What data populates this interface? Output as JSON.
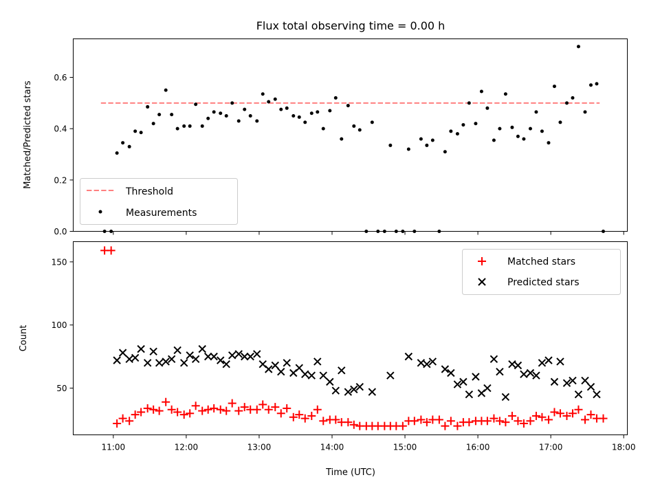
{
  "title": "Flux total observing time = 0.00 h",
  "chart_data": [
    {
      "type": "scatter",
      "title": "Flux total observing time = 0.00 h",
      "xlabel": "",
      "ylabel": "Matched/Predicted stars",
      "xlim": [
        10.45,
        18.05
      ],
      "ylim": [
        0.0,
        0.75
      ],
      "yticks": [
        0.0,
        0.2,
        0.4,
        0.6
      ],
      "ytick_labels": [
        "0.0",
        "0.2",
        "0.4",
        "0.6"
      ],
      "grid": false,
      "legend_position": "lower-left",
      "threshold": {
        "name": "Threshold",
        "value": 0.5,
        "x_range": [
          10.83,
          17.67
        ],
        "color": "#ff7f7f"
      },
      "series": [
        {
          "name": "Measurements",
          "color": "#000000",
          "points": [
            [
              10.88,
              0.0
            ],
            [
              10.97,
              0.0
            ],
            [
              11.05,
              0.305
            ],
            [
              11.13,
              0.345
            ],
            [
              11.22,
              0.33
            ],
            [
              11.3,
              0.39
            ],
            [
              11.38,
              0.385
            ],
            [
              11.47,
              0.485
            ],
            [
              11.55,
              0.42
            ],
            [
              11.63,
              0.455
            ],
            [
              11.72,
              0.55
            ],
            [
              11.8,
              0.455
            ],
            [
              11.88,
              0.4
            ],
            [
              11.97,
              0.41
            ],
            [
              12.05,
              0.41
            ],
            [
              12.13,
              0.495
            ],
            [
              12.22,
              0.41
            ],
            [
              12.3,
              0.44
            ],
            [
              12.38,
              0.465
            ],
            [
              12.47,
              0.46
            ],
            [
              12.55,
              0.45
            ],
            [
              12.63,
              0.5
            ],
            [
              12.72,
              0.43
            ],
            [
              12.8,
              0.475
            ],
            [
              12.88,
              0.45
            ],
            [
              12.97,
              0.43
            ],
            [
              13.05,
              0.535
            ],
            [
              13.13,
              0.505
            ],
            [
              13.22,
              0.515
            ],
            [
              13.3,
              0.475
            ],
            [
              13.38,
              0.48
            ],
            [
              13.47,
              0.45
            ],
            [
              13.55,
              0.445
            ],
            [
              13.63,
              0.425
            ],
            [
              13.72,
              0.46
            ],
            [
              13.8,
              0.465
            ],
            [
              13.88,
              0.4
            ],
            [
              13.97,
              0.47
            ],
            [
              14.05,
              0.52
            ],
            [
              14.13,
              0.36
            ],
            [
              14.22,
              0.49
            ],
            [
              14.3,
              0.41
            ],
            [
              14.38,
              0.395
            ],
            [
              14.47,
              0.0
            ],
            [
              14.55,
              0.425
            ],
            [
              14.63,
              0.0
            ],
            [
              14.72,
              0.0
            ],
            [
              14.8,
              0.335
            ],
            [
              14.88,
              0.0
            ],
            [
              14.97,
              0.0
            ],
            [
              15.05,
              0.32
            ],
            [
              15.13,
              0.0
            ],
            [
              15.22,
              0.36
            ],
            [
              15.3,
              0.335
            ],
            [
              15.38,
              0.355
            ],
            [
              15.47,
              0.0
            ],
            [
              15.55,
              0.31
            ],
            [
              15.63,
              0.39
            ],
            [
              15.72,
              0.38
            ],
            [
              15.8,
              0.415
            ],
            [
              15.88,
              0.5
            ],
            [
              15.97,
              0.42
            ],
            [
              16.05,
              0.545
            ],
            [
              16.13,
              0.48
            ],
            [
              16.22,
              0.355
            ],
            [
              16.3,
              0.4
            ],
            [
              16.38,
              0.535
            ],
            [
              16.47,
              0.405
            ],
            [
              16.55,
              0.37
            ],
            [
              16.63,
              0.36
            ],
            [
              16.72,
              0.4
            ],
            [
              16.8,
              0.465
            ],
            [
              16.88,
              0.39
            ],
            [
              16.97,
              0.345
            ],
            [
              17.05,
              0.565
            ],
            [
              17.13,
              0.425
            ],
            [
              17.22,
              0.5
            ],
            [
              17.3,
              0.52
            ],
            [
              17.38,
              0.72
            ],
            [
              17.47,
              0.465
            ],
            [
              17.55,
              0.57
            ],
            [
              17.63,
              0.575
            ],
            [
              17.72,
              0.0
            ]
          ]
        }
      ]
    },
    {
      "type": "scatter",
      "title": "",
      "xlabel": "Time (UTC)",
      "ylabel": "Count",
      "xlim": [
        10.45,
        18.05
      ],
      "ylim": [
        13,
        166
      ],
      "xticks": [
        11,
        12,
        13,
        14,
        15,
        16,
        17,
        18
      ],
      "xtick_labels": [
        "11:00",
        "12:00",
        "13:00",
        "14:00",
        "15:00",
        "16:00",
        "17:00",
        "18:00"
      ],
      "yticks": [
        50,
        100,
        150
      ],
      "ytick_labels": [
        "50",
        "100",
        "150"
      ],
      "grid": false,
      "legend_position": "top-right",
      "series": [
        {
          "name": "Matched stars",
          "marker": "plus",
          "color": "#ff0000",
          "points": [
            [
              10.88,
              159
            ],
            [
              10.97,
              159
            ],
            [
              11.05,
              22
            ],
            [
              11.13,
              26
            ],
            [
              11.22,
              24
            ],
            [
              11.3,
              29
            ],
            [
              11.38,
              31
            ],
            [
              11.47,
              34
            ],
            [
              11.55,
              33
            ],
            [
              11.63,
              32
            ],
            [
              11.72,
              39
            ],
            [
              11.8,
              33
            ],
            [
              11.88,
              31
            ],
            [
              11.97,
              29
            ],
            [
              12.05,
              30
            ],
            [
              12.13,
              36
            ],
            [
              12.22,
              32
            ],
            [
              12.3,
              33
            ],
            [
              12.38,
              34
            ],
            [
              12.47,
              33
            ],
            [
              12.55,
              32
            ],
            [
              12.63,
              38
            ],
            [
              12.72,
              32
            ],
            [
              12.8,
              35
            ],
            [
              12.88,
              33
            ],
            [
              12.97,
              33
            ],
            [
              13.05,
              37
            ],
            [
              13.13,
              33
            ],
            [
              13.22,
              35
            ],
            [
              13.3,
              30
            ],
            [
              13.38,
              34
            ],
            [
              13.47,
              27
            ],
            [
              13.55,
              29
            ],
            [
              13.63,
              26
            ],
            [
              13.72,
              28
            ],
            [
              13.8,
              33
            ],
            [
              13.88,
              24
            ],
            [
              13.97,
              25
            ],
            [
              14.05,
              25
            ],
            [
              14.13,
              23
            ],
            [
              14.22,
              23
            ],
            [
              14.3,
              21
            ],
            [
              14.38,
              20
            ],
            [
              14.47,
              20
            ],
            [
              14.55,
              20
            ],
            [
              14.63,
              20
            ],
            [
              14.72,
              20
            ],
            [
              14.8,
              20
            ],
            [
              14.88,
              20
            ],
            [
              14.97,
              20
            ],
            [
              15.05,
              24
            ],
            [
              15.13,
              24
            ],
            [
              15.22,
              25
            ],
            [
              15.3,
              23
            ],
            [
              15.38,
              25
            ],
            [
              15.47,
              25
            ],
            [
              15.55,
              20
            ],
            [
              15.63,
              24
            ],
            [
              15.72,
              20
            ],
            [
              15.8,
              23
            ],
            [
              15.88,
              23
            ],
            [
              15.97,
              24
            ],
            [
              16.05,
              24
            ],
            [
              16.13,
              24
            ],
            [
              16.22,
              26
            ],
            [
              16.3,
              24
            ],
            [
              16.38,
              23
            ],
            [
              16.47,
              28
            ],
            [
              16.55,
              24
            ],
            [
              16.63,
              22
            ],
            [
              16.72,
              24
            ],
            [
              16.8,
              28
            ],
            [
              16.88,
              27
            ],
            [
              16.97,
              25
            ],
            [
              17.05,
              31
            ],
            [
              17.13,
              30
            ],
            [
              17.22,
              28
            ],
            [
              17.3,
              30
            ],
            [
              17.38,
              33
            ],
            [
              17.47,
              25
            ],
            [
              17.55,
              29
            ],
            [
              17.63,
              26
            ],
            [
              17.72,
              26
            ]
          ]
        },
        {
          "name": "Predicted stars",
          "marker": "x",
          "color": "#000000",
          "points": [
            [
              11.05,
              72
            ],
            [
              11.13,
              78
            ],
            [
              11.22,
              73
            ],
            [
              11.3,
              74
            ],
            [
              11.38,
              81
            ],
            [
              11.47,
              70
            ],
            [
              11.55,
              79
            ],
            [
              11.63,
              70
            ],
            [
              11.72,
              71
            ],
            [
              11.8,
              73
            ],
            [
              11.88,
              80
            ],
            [
              11.97,
              70
            ],
            [
              12.05,
              76
            ],
            [
              12.13,
              73
            ],
            [
              12.22,
              81
            ],
            [
              12.3,
              75
            ],
            [
              12.38,
              75
            ],
            [
              12.47,
              72
            ],
            [
              12.55,
              69
            ],
            [
              12.63,
              76
            ],
            [
              12.72,
              77
            ],
            [
              12.8,
              75
            ],
            [
              12.88,
              75
            ],
            [
              12.97,
              77
            ],
            [
              13.05,
              69
            ],
            [
              13.13,
              65
            ],
            [
              13.22,
              68
            ],
            [
              13.3,
              63
            ],
            [
              13.38,
              70
            ],
            [
              13.47,
              62
            ],
            [
              13.55,
              66
            ],
            [
              13.63,
              61
            ],
            [
              13.72,
              60
            ],
            [
              13.8,
              71
            ],
            [
              13.88,
              60
            ],
            [
              13.97,
              55
            ],
            [
              14.05,
              48
            ],
            [
              14.13,
              64
            ],
            [
              14.22,
              47
            ],
            [
              14.3,
              49
            ],
            [
              14.38,
              51
            ],
            [
              14.55,
              47
            ],
            [
              14.8,
              60
            ],
            [
              15.05,
              75
            ],
            [
              15.22,
              70
            ],
            [
              15.3,
              69
            ],
            [
              15.38,
              71
            ],
            [
              15.55,
              65
            ],
            [
              15.63,
              62
            ],
            [
              15.72,
              53
            ],
            [
              15.8,
              55
            ],
            [
              15.88,
              45
            ],
            [
              15.97,
              59
            ],
            [
              16.05,
              46
            ],
            [
              16.13,
              50
            ],
            [
              16.22,
              73
            ],
            [
              16.3,
              63
            ],
            [
              16.38,
              43
            ],
            [
              16.47,
              69
            ],
            [
              16.55,
              68
            ],
            [
              16.63,
              61
            ],
            [
              16.72,
              62
            ],
            [
              16.8,
              60
            ],
            [
              16.88,
              70
            ],
            [
              16.97,
              72
            ],
            [
              17.05,
              55
            ],
            [
              17.13,
              71
            ],
            [
              17.22,
              54
            ],
            [
              17.3,
              56
            ],
            [
              17.38,
              45
            ],
            [
              17.47,
              56
            ],
            [
              17.55,
              51
            ],
            [
              17.63,
              45
            ]
          ]
        }
      ]
    }
  ]
}
